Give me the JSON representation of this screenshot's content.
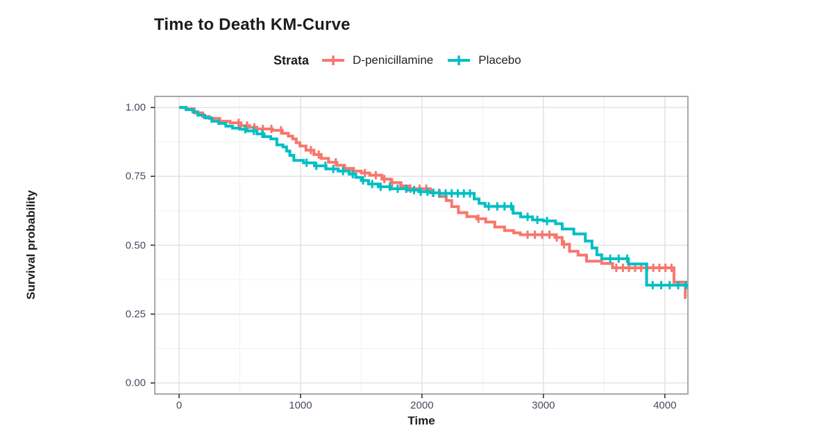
{
  "chart": {
    "title": "Time to Death KM-Curve",
    "xlabel": "Time",
    "ylabel": "Survival probability",
    "legend": {
      "title": "Strata",
      "items": [
        {
          "label": "D-penicillamine",
          "color": "#F8766D"
        },
        {
          "label": "Placebo",
          "color": "#00BFC4"
        }
      ]
    }
  },
  "chart_data": {
    "type": "line",
    "subtype": "kaplan-meier-step-function",
    "title": "Time to Death KM-Curve",
    "xlabel": "Time",
    "ylabel": "Survival probability",
    "legend_title": "Strata",
    "legend_position": "top",
    "grid": "major+minor",
    "background": "#ffffff",
    "panel_border_color": "#a8a8a8",
    "major_grid_color": "#e2e2e2",
    "minor_grid_color": "#f0f0f0",
    "tick_color": "#333333",
    "xlim": [
      -200,
      4190
    ],
    "ylim": [
      -0.04,
      1.04
    ],
    "x_ticks": [
      0,
      1000,
      2000,
      3000,
      4000
    ],
    "x_tick_labels": [
      "0",
      "1000",
      "2000",
      "3000",
      "4000"
    ],
    "y_ticks": [
      0.0,
      0.25,
      0.5,
      0.75,
      1.0
    ],
    "y_tick_labels": [
      "0.00",
      "0.25",
      "0.50",
      "0.75",
      "1.00"
    ],
    "x_minor_ticks": [
      500,
      1500,
      2500,
      3500
    ],
    "y_minor_ticks": [
      0.125,
      0.375,
      0.625,
      0.875
    ],
    "series": [
      {
        "name": "D-penicillamine",
        "color": "#F8766D",
        "t_end": 4176,
        "steps": [
          [
            0,
            1.0
          ],
          [
            60,
            0.995
          ],
          [
            125,
            0.98
          ],
          [
            195,
            0.967
          ],
          [
            250,
            0.96
          ],
          [
            335,
            0.95
          ],
          [
            420,
            0.944
          ],
          [
            510,
            0.934
          ],
          [
            580,
            0.928
          ],
          [
            640,
            0.922
          ],
          [
            770,
            0.917
          ],
          [
            850,
            0.906
          ],
          [
            900,
            0.896
          ],
          [
            935,
            0.886
          ],
          [
            965,
            0.872
          ],
          [
            995,
            0.86
          ],
          [
            1045,
            0.845
          ],
          [
            1110,
            0.829
          ],
          [
            1170,
            0.815
          ],
          [
            1230,
            0.801
          ],
          [
            1300,
            0.79
          ],
          [
            1360,
            0.779
          ],
          [
            1425,
            0.769
          ],
          [
            1500,
            0.762
          ],
          [
            1570,
            0.754
          ],
          [
            1670,
            0.74
          ],
          [
            1745,
            0.727
          ],
          [
            1825,
            0.715
          ],
          [
            1900,
            0.705
          ],
          [
            2070,
            0.69
          ],
          [
            2145,
            0.677
          ],
          [
            2200,
            0.662
          ],
          [
            2245,
            0.64
          ],
          [
            2300,
            0.618
          ],
          [
            2370,
            0.604
          ],
          [
            2450,
            0.596
          ],
          [
            2525,
            0.584
          ],
          [
            2600,
            0.566
          ],
          [
            2680,
            0.553
          ],
          [
            2755,
            0.545
          ],
          [
            2810,
            0.538
          ],
          [
            3095,
            0.528
          ],
          [
            3155,
            0.503
          ],
          [
            3215,
            0.478
          ],
          [
            3285,
            0.464
          ],
          [
            3355,
            0.442
          ],
          [
            3480,
            0.434
          ],
          [
            3570,
            0.418
          ],
          [
            4075,
            0.366
          ],
          [
            4168,
            0.31
          ]
        ],
        "censor_times": [
          490,
          560,
          620,
          690,
          760,
          840,
          1085,
          1150,
          1290,
          1365,
          1440,
          1530,
          1620,
          1690,
          1755,
          1830,
          1905,
          1980,
          2035,
          2090,
          2140,
          2465,
          2870,
          2930,
          2990,
          3050,
          3110,
          3170,
          3600,
          3655,
          3705,
          3755,
          3805,
          3855,
          3905,
          3955,
          4005,
          4055
        ]
      },
      {
        "name": "Placebo",
        "color": "#00BFC4",
        "t_end": 4183,
        "steps": [
          [
            0,
            1.0
          ],
          [
            57,
            0.992
          ],
          [
            114,
            0.984
          ],
          [
            154,
            0.972
          ],
          [
            211,
            0.962
          ],
          [
            270,
            0.95
          ],
          [
            326,
            0.942
          ],
          [
            385,
            0.932
          ],
          [
            440,
            0.925
          ],
          [
            500,
            0.921
          ],
          [
            560,
            0.915
          ],
          [
            640,
            0.904
          ],
          [
            700,
            0.894
          ],
          [
            755,
            0.886
          ],
          [
            805,
            0.864
          ],
          [
            855,
            0.857
          ],
          [
            885,
            0.842
          ],
          [
            912,
            0.826
          ],
          [
            945,
            0.808
          ],
          [
            1025,
            0.799
          ],
          [
            1115,
            0.788
          ],
          [
            1210,
            0.777
          ],
          [
            1310,
            0.769
          ],
          [
            1400,
            0.758
          ],
          [
            1455,
            0.746
          ],
          [
            1500,
            0.735
          ],
          [
            1560,
            0.722
          ],
          [
            1640,
            0.712
          ],
          [
            1745,
            0.705
          ],
          [
            1880,
            0.7
          ],
          [
            1975,
            0.694
          ],
          [
            2070,
            0.69
          ],
          [
            2145,
            0.688
          ],
          [
            2430,
            0.668
          ],
          [
            2470,
            0.652
          ],
          [
            2520,
            0.641
          ],
          [
            2750,
            0.616
          ],
          [
            2812,
            0.603
          ],
          [
            2910,
            0.592
          ],
          [
            3000,
            0.588
          ],
          [
            3100,
            0.578
          ],
          [
            3155,
            0.559
          ],
          [
            3250,
            0.541
          ],
          [
            3345,
            0.515
          ],
          [
            3400,
            0.49
          ],
          [
            3440,
            0.465
          ],
          [
            3480,
            0.451
          ],
          [
            3700,
            0.432
          ],
          [
            3850,
            0.355
          ],
          [
            4178,
            0.348
          ]
        ],
        "censor_times": [
          545,
          615,
          685,
          1050,
          1130,
          1205,
          1270,
          1350,
          1430,
          1515,
          1590,
          1660,
          1735,
          1800,
          1870,
          1935,
          1990,
          2045,
          2095,
          2145,
          2195,
          2245,
          2295,
          2345,
          2395,
          2550,
          2620,
          2680,
          2735,
          2870,
          2950,
          3030,
          3550,
          3620,
          3690,
          3900,
          3970,
          4040,
          4110,
          4175
        ]
      }
    ]
  }
}
